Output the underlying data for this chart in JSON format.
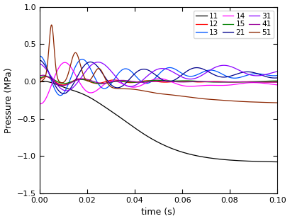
{
  "xlabel": "time (s)",
  "ylabel": "Pressure (MPa)",
  "xlim": [
    0.0,
    0.1
  ],
  "ylim": [
    -1.5,
    1.0
  ],
  "yticks": [
    -1.5,
    -1.0,
    -0.5,
    0.0,
    0.5,
    1.0
  ],
  "xticks": [
    0.0,
    0.02,
    0.04,
    0.06,
    0.08,
    0.1
  ],
  "series": [
    {
      "label": "11",
      "color": "#000000"
    },
    {
      "label": "12",
      "color": "#ff0000"
    },
    {
      "label": "13",
      "color": "#0055ff"
    },
    {
      "label": "14",
      "color": "#ff00ff"
    },
    {
      "label": "15",
      "color": "#008000"
    },
    {
      "label": "21",
      "color": "#00008b"
    },
    {
      "label": "31",
      "color": "#8B00FF"
    },
    {
      "label": "41",
      "color": "#990099"
    },
    {
      "label": "51",
      "color": "#8B2500"
    }
  ],
  "legend_cols": 3,
  "linewidth": 0.9
}
